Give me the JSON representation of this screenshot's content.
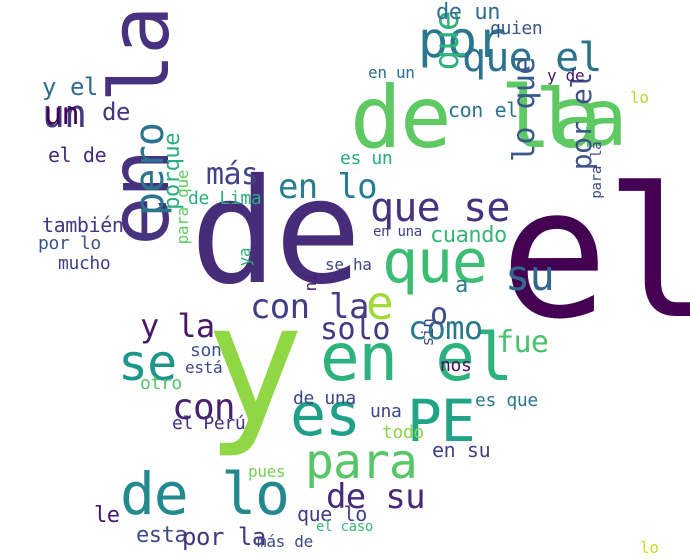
{
  "words": [
    {
      "text": "de",
      "c": "#472c7a"
    },
    {
      "text": "y",
      "c": "#8fd744"
    },
    {
      "text": "de la",
      "c": "#5ec962"
    },
    {
      "text": "en el",
      "c": "#2db27d"
    },
    {
      "text": "en la",
      "c": "#46327e"
    },
    {
      "text": "que",
      "c": "#3dbc74"
    },
    {
      "text": "por",
      "c": "#2a788e"
    },
    {
      "text": "es",
      "c": "#1fa088"
    },
    {
      "text": "PE",
      "c": "#20a386"
    },
    {
      "text": "el",
      "c": "#440154"
    },
    {
      "text": "de lo",
      "c": "#23898e"
    },
    {
      "text": "se",
      "c": "#1f968b"
    },
    {
      "text": "para",
      "c": "#56c667"
    },
    {
      "text": "su",
      "c": "#31688e"
    },
    {
      "text": "con",
      "c": "#482173"
    },
    {
      "text": "e",
      "c": "#a0da39"
    },
    {
      "text": "que el",
      "c": "#2c728e"
    },
    {
      "text": "que se",
      "c": "#46337f"
    },
    {
      "text": "la",
      "c": "#5ec962"
    },
    {
      "text": "un",
      "c": "#453781"
    },
    {
      "text": "que la",
      "c": "#2db27d"
    },
    {
      "text": "lo que",
      "c": "#38598c"
    },
    {
      "text": "por el",
      "c": "#3b528b"
    },
    {
      "text": "pero",
      "c": "#2c738e"
    },
    {
      "text": "en lo",
      "c": "#287d8e"
    },
    {
      "text": "más",
      "c": "#414487"
    },
    {
      "text": "y la",
      "c": "#48186a"
    },
    {
      "text": "con la",
      "c": "#433e85"
    },
    {
      "text": "solo",
      "c": "#453882"
    },
    {
      "text": "como",
      "c": "#2a788e"
    },
    {
      "text": "o",
      "c": "#3e4c8a"
    },
    {
      "text": "de su",
      "c": "#482979"
    },
    {
      "text": "fue",
      "c": "#4ac16d"
    },
    {
      "text": "cuando",
      "c": "#35b779"
    },
    {
      "text": "de un",
      "c": "#2e6e8e"
    },
    {
      "text": "quien",
      "c": "#3a548c"
    },
    {
      "text": "porque",
      "c": "#29af7f"
    },
    {
      "text": "en su",
      "c": "#424186"
    },
    {
      "text": "una",
      "c": "#3f4788"
    },
    {
      "text": "le",
      "c": "#48186a"
    },
    {
      "text": "esta",
      "c": "#3e4989"
    },
    {
      "text": "por la",
      "c": "#453781"
    },
    {
      "text": "que lo",
      "c": "#433e85"
    },
    {
      "text": "también",
      "c": "#453882"
    },
    {
      "text": "por lo",
      "c": "#3a538b"
    },
    {
      "text": "mucho",
      "c": "#423f85"
    },
    {
      "text": "con el",
      "c": "#2c738e"
    },
    {
      "text": "el de",
      "c": "#472c7a"
    },
    {
      "text": "y el",
      "c": "#31688e"
    },
    {
      "text": "un",
      "c": "#440154"
    },
    {
      "text": "de",
      "c": "#453581"
    },
    {
      "text": "en un",
      "c": "#2e6f8e"
    },
    {
      "text": "y de",
      "c": "#471365"
    },
    {
      "text": "lo",
      "c": "#b5de2b"
    },
    {
      "text": "a",
      "c": "#277f8e"
    },
    {
      "text": "para la",
      "c": "#3e4a89"
    },
    {
      "text": "es un",
      "c": "#25ac82"
    },
    {
      "text": "en una",
      "c": "#424086"
    },
    {
      "text": "se ha",
      "c": "#3e4989"
    },
    {
      "text": "de Lima",
      "c": "#2ab07f"
    },
    {
      "text": "para que",
      "c": "#60ca60"
    },
    {
      "text": "son",
      "c": "#39568c"
    },
    {
      "text": "está",
      "c": "#3f4788"
    },
    {
      "text": "otro",
      "c": "#52c569"
    },
    {
      "text": "ni",
      "c": "#481f70"
    },
    {
      "text": "sin",
      "c": "#3e4c8a"
    },
    {
      "text": "nos",
      "c": "#471063"
    },
    {
      "text": "el Perú",
      "c": "#46307e"
    },
    {
      "text": "de una",
      "c": "#404588"
    },
    {
      "text": "es que",
      "c": "#2a788e"
    },
    {
      "text": "todo",
      "c": "#86d549"
    },
    {
      "text": "pues",
      "c": "#75d054"
    },
    {
      "text": "más de",
      "c": "#3e4a89"
    },
    {
      "text": "el caso",
      "c": "#35b779"
    },
    {
      "text": "lo",
      "c": "#c8e020"
    },
    {
      "text": "ya",
      "c": "#2db27d"
    }
  ]
}
